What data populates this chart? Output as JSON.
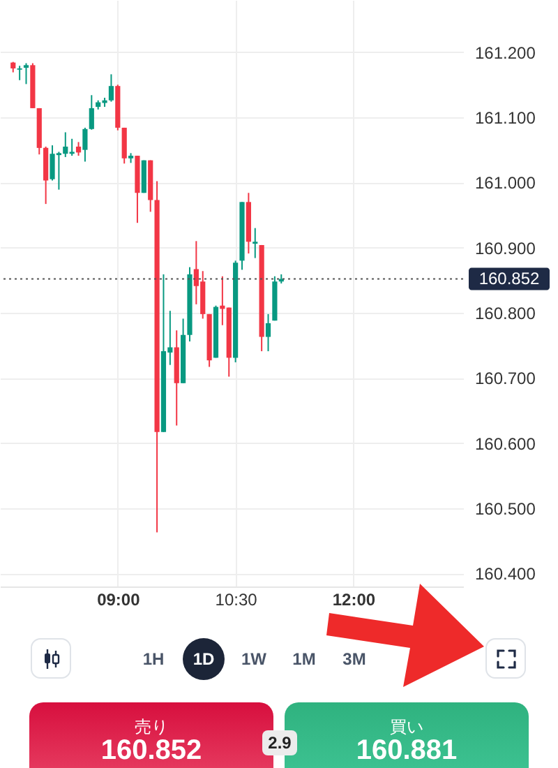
{
  "chart_data": {
    "type": "candlestick",
    "x": [
      7.6667,
      7.75,
      7.8333,
      7.9167,
      8,
      8.0833,
      8.1667,
      8.25,
      8.3333,
      8.4167,
      8.5,
      8.5833,
      8.6667,
      8.75,
      8.8333,
      8.9167,
      9,
      9.0833,
      9.1667,
      9.25,
      9.3333,
      9.4167,
      9.5,
      9.5833,
      9.6667,
      9.75,
      9.8333,
      9.9167,
      10,
      10.0833,
      10.1667,
      10.25,
      10.3333,
      10.4167,
      10.5,
      10.5833,
      10.6667,
      10.75,
      10.8333,
      10.9167,
      11,
      11.0833
    ],
    "ohlc": [
      [
        161.184,
        161.185,
        161.169,
        161.175
      ],
      [
        161.173,
        161.179,
        161.157,
        161.175
      ],
      [
        161.176,
        161.183,
        161.151,
        161.18
      ],
      [
        161.18,
        161.183,
        161.114,
        161.114
      ],
      [
        161.114,
        161.114,
        161.043,
        161.053
      ],
      [
        161.053,
        161.055,
        160.967,
        161.003
      ],
      [
        161.005,
        161.057,
        161.003,
        161.044
      ],
      [
        161.042,
        161.047,
        160.989,
        161.045
      ],
      [
        161.044,
        161.077,
        161.039,
        161.055
      ],
      [
        161.044,
        161.067,
        161.041,
        161.047
      ],
      [
        161.055,
        161.062,
        161.041,
        161.046
      ],
      [
        161.05,
        161.084,
        161.032,
        161.082
      ],
      [
        161.082,
        161.134,
        161.081,
        161.114
      ],
      [
        161.116,
        161.126,
        161.112,
        161.123
      ],
      [
        161.122,
        161.13,
        161.116,
        161.126
      ],
      [
        161.126,
        161.166,
        161.124,
        161.148
      ],
      [
        161.148,
        161.15,
        161.08,
        161.084
      ],
      [
        161.084,
        161.084,
        161.029,
        161.037
      ],
      [
        161.037,
        161.045,
        161.03,
        161.041
      ],
      [
        161.041,
        161.041,
        160.938,
        160.984
      ],
      [
        160.984,
        161.034,
        160.984,
        161.034
      ],
      [
        161.034,
        161.034,
        160.955,
        160.973
      ],
      [
        160.973,
        161.002,
        160.463,
        160.617
      ],
      [
        160.617,
        160.859,
        160.617,
        160.741
      ],
      [
        160.739,
        160.803,
        160.72,
        160.747
      ],
      [
        160.747,
        160.773,
        160.627,
        160.692
      ],
      [
        160.692,
        160.791,
        160.692,
        160.766
      ],
      [
        160.766,
        160.87,
        160.756,
        160.859
      ],
      [
        160.867,
        160.91,
        160.813,
        160.841
      ],
      [
        160.848,
        160.864,
        160.791,
        160.798
      ],
      [
        160.798,
        160.798,
        160.717,
        160.727
      ],
      [
        160.731,
        160.811,
        160.731,
        160.809
      ],
      [
        160.811,
        160.856,
        160.781,
        160.806
      ],
      [
        160.808,
        160.808,
        160.702,
        160.731
      ],
      [
        160.731,
        160.88,
        160.724,
        160.877
      ],
      [
        160.88,
        160.97,
        160.866,
        160.97
      ],
      [
        160.97,
        160.984,
        160.891,
        160.909
      ],
      [
        160.906,
        160.93,
        160.884,
        160.909
      ],
      [
        160.904,
        160.904,
        160.741,
        160.763
      ],
      [
        160.763,
        160.798,
        160.741,
        160.784
      ],
      [
        160.788,
        160.856,
        160.788,
        160.848
      ],
      [
        160.848,
        160.859,
        160.845,
        160.852
      ]
    ],
    "colors": [
      "#f23645",
      "#089981",
      "#089981",
      "#f23645",
      "#f23645",
      "#f23645",
      "#089981",
      "#089981",
      "#089981",
      "#089981",
      "#f23645",
      "#089981",
      "#089981",
      "#089981",
      "#089981",
      "#089981",
      "#f23645",
      "#f23645",
      "#089981",
      "#f23645",
      "#089981",
      "#f23645",
      "#f23645",
      "#089981",
      "#089981",
      "#f23645",
      "#089981",
      "#089981",
      "#f23645",
      "#f23645",
      "#f23645",
      "#089981",
      "#f23645",
      "#f23645",
      "#089981",
      "#089981",
      "#f23645",
      "#089981",
      "#f23645",
      "#089981",
      "#089981",
      "#089981"
    ],
    "xlim": [
      7.5,
      13.4
    ],
    "xticks": [
      {
        "value": 9,
        "label": "09:00"
      },
      {
        "value": 10.5,
        "label": "10:30"
      },
      {
        "value": 12,
        "label": "12:00"
      }
    ],
    "ylim": [
      160.38,
      161.28
    ],
    "yticks": [
      {
        "value": 160.4,
        "label": "160.400"
      },
      {
        "value": 160.5,
        "label": "160.500"
      },
      {
        "value": 160.6,
        "label": "160.600"
      },
      {
        "value": 160.7,
        "label": "160.700"
      },
      {
        "value": 160.8,
        "label": "160.800"
      },
      {
        "value": 160.9,
        "label": "160.900"
      },
      {
        "value": 161,
        "label": "161.000"
      },
      {
        "value": 161.1,
        "label": "161.100"
      },
      {
        "value": 161.2,
        "label": "161.200"
      }
    ],
    "grid": true,
    "ref_lines": [
      {
        "axis": "y",
        "value": 160.852,
        "label": "160.852",
        "color": "#555555",
        "line_style": "dotted"
      }
    ],
    "annotations": [
      "1H",
      "1D",
      "1W",
      "1M",
      "3M",
      "売り",
      "160.852",
      "2.9",
      "買い",
      "160.881"
    ]
  }
}
